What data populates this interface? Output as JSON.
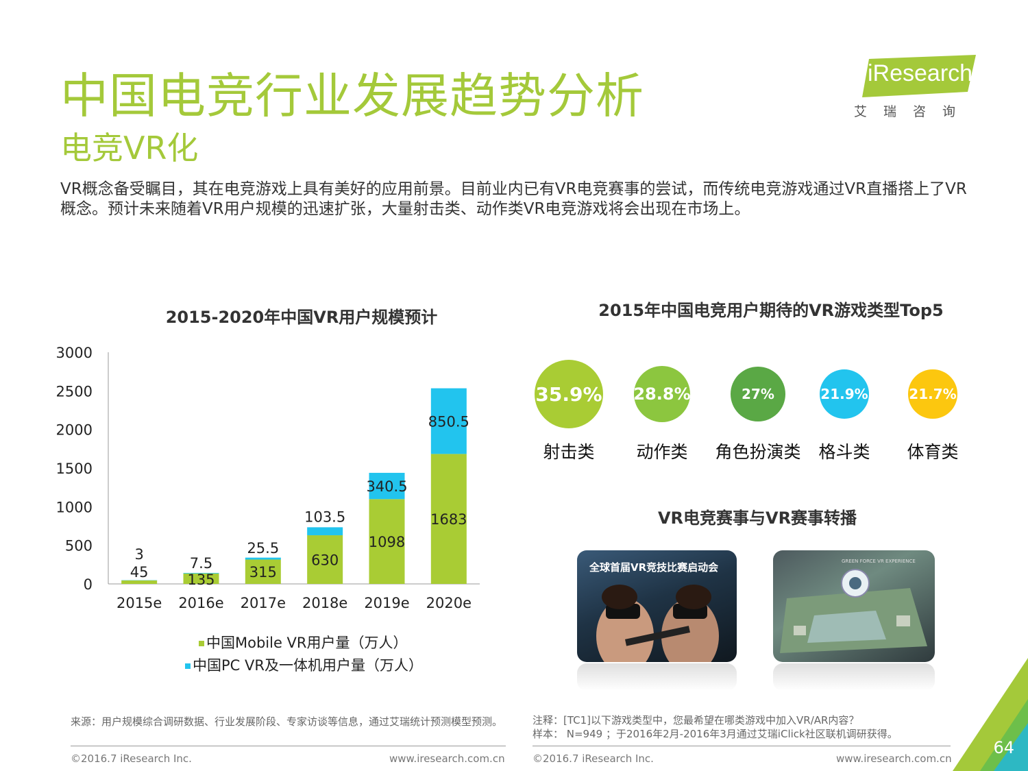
{
  "header": {
    "title": "中国电竞行业发展趋势分析",
    "subtitle": "电竞VR化",
    "intro": "VR概念备受瞩目，其在电竞游戏上具有美好的应用前景。目前业内已有VR电竞赛事的尝试，而传统电竞游戏通过VR直播搭上了VR概念。预计未来随着VR用户规模的迅速扩张，大量射击类、动作类VR电竞游戏将会出现在市场上。"
  },
  "logo": {
    "text": "iResearch",
    "cn": "艾瑞咨询"
  },
  "chart_data": [
    {
      "type": "bar",
      "stacked": true,
      "title": "2015-2020年中国VR用户规模预计",
      "categories": [
        "2015e",
        "2016e",
        "2017e",
        "2018e",
        "2019e",
        "2020e"
      ],
      "series": [
        {
          "name": "中国Mobile VR用户量（万人）",
          "values": [
            45,
            135,
            315,
            630,
            1098,
            1683
          ],
          "labels": [
            "45",
            "135",
            "315",
            "630",
            "1098",
            "1683"
          ],
          "color": "#a9cc34"
        },
        {
          "name": "中国PC VR及一体机用户量（万人）",
          "values": [
            3,
            7.5,
            25.5,
            103.5,
            340.5,
            850.5
          ],
          "labels": [
            "3",
            "7.5",
            "25.5",
            "103.5",
            "340.5",
            "850.5"
          ],
          "color": "#22c4ee"
        }
      ],
      "yticks": [
        "0",
        "500",
        "1000",
        "1500",
        "2000",
        "2500",
        "3000"
      ],
      "ylim": [
        0,
        3000
      ],
      "legend": "bottom"
    },
    {
      "type": "bubble",
      "title": "2015年中国电竞用户期待的VR游戏类型Top5",
      "categories": [
        "射击类",
        "动作类",
        "角色扮演类",
        "格斗类",
        "体育类"
      ],
      "values": [
        35.9,
        28.8,
        27,
        21.9,
        21.7
      ],
      "labels": [
        "35.9%",
        "28.8%",
        "27%",
        "21.9%",
        "21.7%"
      ],
      "colors": [
        "#a9cc34",
        "#8cc63f",
        "#5aa845",
        "#22c4ee",
        "#fcc70f"
      ]
    }
  ],
  "vr_section": {
    "title": "VR电竞赛事与VR赛事转播",
    "photo1_caption": "全球首届VR竞技比赛启动会",
    "photo2_caption": "GREEN FORCE VR EXPERIENCE"
  },
  "notes": {
    "left_source": "来源：用户规模综合调研数据、行业发展阶段、专家访谈等信息，通过艾瑞统计预测模型预测。",
    "right_note": "注释：[TC1]以下游戏类型中，您最希望在哪类游戏中加入VR/AR内容？",
    "right_sample": "样本： N=949 ；于2016年2月-2016年3月通过艾瑞iClick社区联机调研获得。"
  },
  "footer": {
    "copyright_left": "©2016.7 iResearch Inc.",
    "url_left": "www.iresearch.com.cn",
    "copyright_right": "©2016.7 iResearch Inc.",
    "url_right": "www.iresearch.com.cn",
    "page_number": "64"
  }
}
